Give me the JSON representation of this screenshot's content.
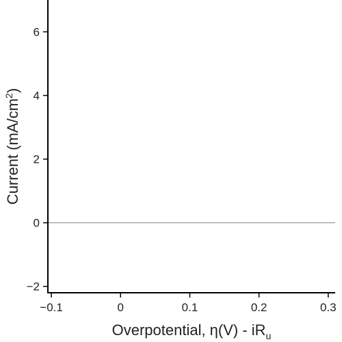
{
  "chart_data": {
    "type": "line",
    "title": "",
    "xlabel": {
      "main": "Overpotential, η(V) - iR",
      "subscript": "u"
    },
    "ylabel": {
      "main": "Current (mA/cm",
      "superscript": "2",
      "close": ")"
    },
    "xlim": [
      -0.105,
      0.31
    ],
    "ylim": [
      -2.2,
      7.0
    ],
    "x_ticks": [
      -0.1,
      0,
      0.1,
      0.2,
      0.3
    ],
    "x_tick_labels": [
      "−0.1",
      "0",
      "0.1",
      "0.2",
      "0.3"
    ],
    "y_ticks": [
      -2,
      0,
      2,
      4,
      6
    ],
    "y_tick_labels": [
      "−2",
      "0",
      "2",
      "4",
      "6"
    ],
    "reference_lines": [
      {
        "orientation": "horizontal",
        "y": 0,
        "color": "#9a9a9a"
      }
    ],
    "series": [],
    "grid": false,
    "legend": "none",
    "colors": {
      "axis": "#000000",
      "text": "#222222",
      "zero_line": "#9a9a9a"
    }
  }
}
